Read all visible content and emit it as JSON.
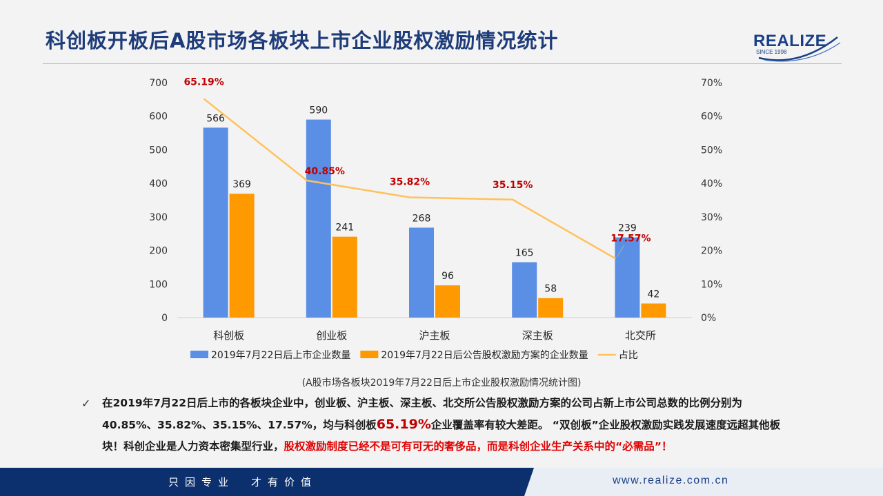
{
  "header": {
    "title": "科创板开板后A股市场各板块上市企业股权激励情况统计",
    "logo_text": "REALIZE",
    "logo_since": "SINCE 1998"
  },
  "chart_data": {
    "type": "bar",
    "categories": [
      "科创板",
      "创业板",
      "沪主板",
      "深主板",
      "北交所"
    ],
    "series": [
      {
        "name": "2019年7月22日后上市企业数量",
        "type": "bar",
        "axis": "left",
        "color": "#5b8fe6",
        "values": [
          566,
          590,
          268,
          165,
          239
        ]
      },
      {
        "name": "2019年7月22日后公告股权激励方案的企业数量",
        "type": "bar",
        "axis": "left",
        "color": "#ff9900",
        "values": [
          369,
          241,
          96,
          58,
          42
        ]
      },
      {
        "name": "占比",
        "type": "line",
        "axis": "right",
        "color": "#ffc15a",
        "values": [
          65.19,
          40.85,
          35.82,
          35.15,
          17.57
        ]
      }
    ],
    "left_axis": {
      "min": 0,
      "max": 700,
      "ticks": [
        "0",
        "100",
        "200",
        "300",
        "400",
        "500",
        "600",
        "700"
      ]
    },
    "right_axis": {
      "min": 0,
      "max": 70,
      "ticks": [
        "0%",
        "10%",
        "20%",
        "30%",
        "40%",
        "50%",
        "60%",
        "70%"
      ]
    },
    "ratio_labels": [
      "65.19%",
      "40.85%",
      "35.82%",
      "35.15%",
      "17.57%"
    ],
    "label_color": "#c00000",
    "legend_position": "bottom",
    "caption": "(A股市场各板块2019年7月22日后上市企业股权激励情况统计图)"
  },
  "summary": {
    "check_mark": "✓",
    "part1": "在2019年7月22日后上市的各板块企业中，创业板、沪主板、深主板、北交所公告股权激励方案的公司占新上市公司总数的比例分别为40.85%、35.82%、35.15%、17.57%，均与科创板",
    "highlight_value": "65.19%",
    "part2": "企业覆盖率有较大差距。 “双创板”企业股权激励实践发展速度远超其他板块！科创企业是人力资本密集型行业，",
    "red_part": "股权激励制度已经不是可有可无的奢侈品，而是科创企业生产关系中的“必需品”！"
  },
  "footer": {
    "slogan": "只因专业　才有价值",
    "url": "www.realize.com.cn"
  }
}
